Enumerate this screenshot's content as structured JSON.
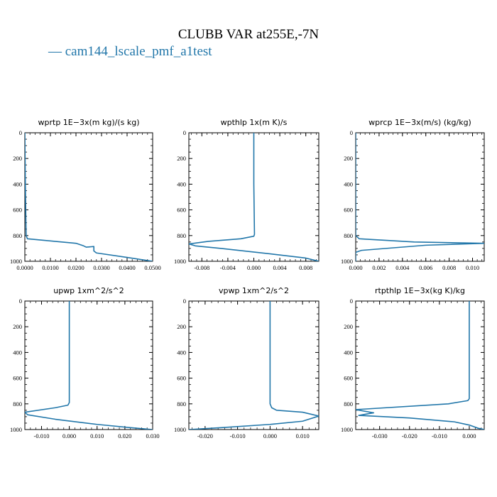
{
  "figure": {
    "title": "CLUBB VAR at255E,-7N",
    "legend": "— cam144_lscale_pmf_a1test",
    "line_color": "#2277aa"
  },
  "chart_data": [
    {
      "type": "line",
      "title": "wprtp  1E−3x(m kg)/(s kg)",
      "xlim": [
        0,
        0.05
      ],
      "ylim": [
        1000,
        0
      ],
      "xticks": [
        "0.0000",
        "0.0100",
        "0.0200",
        "0.0300",
        "0.0400",
        "0.0500"
      ],
      "xtick_values": [
        0,
        0.01,
        0.02,
        0.03,
        0.04,
        0.05
      ],
      "yticks": [
        "0",
        "200",
        "400",
        "600",
        "800",
        "1000"
      ],
      "ytick_values": [
        0,
        200,
        400,
        600,
        800,
        1000
      ],
      "series": [
        {
          "x": [
            0,
            0.0002,
            0.0005,
            0.001,
            0.02,
            0.023,
            0.024,
            0.027,
            0.027,
            0.028,
            0.04,
            0.05
          ],
          "y": [
            0,
            400,
            800,
            825,
            860,
            880,
            890,
            885,
            920,
            935,
            970,
            1000
          ]
        }
      ]
    },
    {
      "type": "line",
      "title": "wpthlp  1x(m K)/s",
      "xlim": [
        -0.01,
        0.01
      ],
      "ylim": [
        1000,
        0
      ],
      "xticks": [
        "-0.008",
        "-0.004",
        "0.000",
        "0.004",
        "0.008"
      ],
      "xtick_values": [
        -0.008,
        -0.004,
        0,
        0.004,
        0.008
      ],
      "yticks": [
        "0",
        "200",
        "400",
        "600",
        "800",
        "1000"
      ],
      "ytick_values": [
        0,
        200,
        400,
        600,
        800,
        1000
      ],
      "series": [
        {
          "x": [
            0,
            0,
            0.0001,
            0,
            -0.002,
            -0.007,
            -0.01,
            -0.009,
            -0.005,
            0.003,
            0.008,
            0.01
          ],
          "y": [
            0,
            400,
            790,
            805,
            825,
            845,
            865,
            880,
            900,
            945,
            975,
            1000
          ]
        }
      ]
    },
    {
      "type": "line",
      "title": "wprcp  1E−3x(m/s) (kg/kg)",
      "xlim": [
        0,
        0.011
      ],
      "ylim": [
        1000,
        0
      ],
      "xticks": [
        "0.000",
        "0.002",
        "0.004",
        "0.006",
        "0.008",
        "0.010"
      ],
      "xtick_values": [
        0,
        0.002,
        0.004,
        0.006,
        0.008,
        0.01
      ],
      "yticks": [
        "0",
        "200",
        "400",
        "600",
        "800",
        "1000"
      ],
      "ytick_values": [
        0,
        200,
        400,
        600,
        800,
        1000
      ],
      "series": [
        {
          "x": [
            0,
            0,
            0.0003,
            0.005,
            0.011,
            0.006,
            0.0005,
            0,
            0
          ],
          "y": [
            0,
            800,
            825,
            850,
            860,
            875,
            915,
            930,
            1000
          ]
        }
      ]
    },
    {
      "type": "line",
      "title": "upwp  1xm^2/s^2",
      "xlim": [
        -0.016,
        0.03
      ],
      "ylim": [
        1000,
        0
      ],
      "xticks": [
        "-0.010",
        "0.000",
        "0.010",
        "0.020",
        "0.030"
      ],
      "xtick_values": [
        -0.01,
        0,
        0.01,
        0.02,
        0.03
      ],
      "yticks": [
        "0",
        "200",
        "400",
        "600",
        "800",
        "1000"
      ],
      "ytick_values": [
        0,
        200,
        400,
        600,
        800,
        1000
      ],
      "series": [
        {
          "x": [
            0,
            0,
            -0.0005,
            -0.005,
            -0.016,
            -0.015,
            -0.005,
            0.01,
            0.022,
            0.03
          ],
          "y": [
            0,
            790,
            810,
            830,
            865,
            885,
            920,
            960,
            985,
            1000
          ]
        }
      ]
    },
    {
      "type": "line",
      "title": "vpwp  1xm^2/s^2",
      "xlim": [
        -0.025,
        0.015
      ],
      "ylim": [
        1000,
        0
      ],
      "xticks": [
        "-0.020",
        "-0.010",
        "0.000",
        "0.010"
      ],
      "xtick_values": [
        -0.02,
        -0.01,
        0,
        0.01
      ],
      "yticks": [
        "0",
        "200",
        "400",
        "600",
        "800",
        "1000"
      ],
      "ytick_values": [
        0,
        200,
        400,
        600,
        800,
        1000
      ],
      "series": [
        {
          "x": [
            0,
            0,
            0.0005,
            0.002,
            0.01,
            0.015,
            0.01,
            0.0,
            -0.015,
            -0.025
          ],
          "y": [
            0,
            800,
            830,
            850,
            865,
            895,
            935,
            960,
            985,
            1000
          ]
        }
      ]
    },
    {
      "type": "line",
      "title": "rtpthlp  1E−3x(kg K)/kg",
      "xlim": [
        -0.038,
        0.005
      ],
      "ylim": [
        1000,
        0
      ],
      "xticks": [
        "-0.030",
        "-0.020",
        "-0.010",
        "0.000"
      ],
      "xtick_values": [
        -0.03,
        -0.02,
        -0.01,
        0
      ],
      "yticks": [
        "0",
        "200",
        "400",
        "600",
        "800",
        "1000"
      ],
      "ytick_values": [
        0,
        200,
        400,
        600,
        800,
        1000
      ],
      "series": [
        {
          "x": [
            0,
            0,
            -0.0005,
            -0.007,
            -0.038,
            -0.032,
            -0.037,
            -0.02,
            -0.005,
            0.0,
            0.003,
            0.005
          ],
          "y": [
            0,
            760,
            775,
            800,
            845,
            870,
            890,
            910,
            940,
            965,
            990,
            1000
          ]
        }
      ]
    }
  ]
}
